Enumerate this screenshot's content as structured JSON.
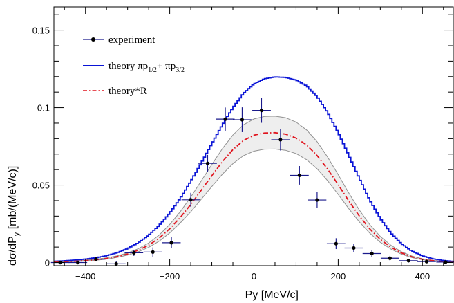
{
  "chart_data": {
    "type": "line",
    "xlabel": "Py [MeV/c]",
    "ylabel_main": "dσ/dP",
    "ylabel_sub": "y",
    "ylabel_tail": " [mb/(MeV/c)]",
    "xlim": [
      -475,
      475
    ],
    "ylim": [
      -0.002,
      0.165
    ],
    "x_ticks": [
      -400,
      -200,
      0,
      200,
      400
    ],
    "x_tick_labels": [
      "−400",
      "−200",
      "0",
      "200",
      "400"
    ],
    "y_ticks": [
      0,
      0.05,
      0.1,
      0.15
    ],
    "y_tick_labels": [
      "0",
      "0.05",
      "0.1",
      "0.15"
    ],
    "grid": false,
    "legend_position": "top-left",
    "legend": [
      {
        "key": "experiment",
        "text": "experiment"
      },
      {
        "key": "theory",
        "text": "theory ",
        "pi1": "πp",
        "sub1": "1/2",
        "plus": "+ ",
        "pi2": "πp",
        "sub2": "3/2"
      },
      {
        "key": "theoryR",
        "text": "theory*R"
      }
    ],
    "colors": {
      "theory": "#0a14d6",
      "theoryR": "#e0141e",
      "experiment": "#000000",
      "errorbar": "#1a1a8c",
      "band": "#909090"
    },
    "series": [
      {
        "key": "theory",
        "style": "step",
        "x": [
          -475,
          -450,
          -425,
          -400,
          -375,
          -350,
          -325,
          -300,
          -275,
          -250,
          -225,
          -200,
          -175,
          -150,
          -125,
          -100,
          -75,
          -50,
          -25,
          0,
          25,
          50,
          75,
          100,
          125,
          150,
          175,
          200,
          225,
          250,
          275,
          300,
          325,
          350,
          375,
          400,
          425,
          450,
          475
        ],
        "values": [
          0.0008,
          0.0011,
          0.0016,
          0.0022,
          0.0031,
          0.0044,
          0.0063,
          0.009,
          0.0127,
          0.0176,
          0.024,
          0.0319,
          0.0414,
          0.0523,
          0.0643,
          0.0767,
          0.0888,
          0.0999,
          0.1091,
          0.1153,
          0.1186,
          0.1198,
          0.1195,
          0.1178,
          0.1141,
          0.1072,
          0.0969,
          0.084,
          0.0694,
          0.0544,
          0.0404,
          0.0285,
          0.0191,
          0.0122,
          0.0074,
          0.0043,
          0.0024,
          0.0013,
          0.0007
        ]
      },
      {
        "key": "theoryR",
        "style": "dashdot",
        "x": [
          -475,
          -450,
          -425,
          -400,
          -375,
          -350,
          -325,
          -300,
          -275,
          -250,
          -225,
          -200,
          -175,
          -150,
          -125,
          -100,
          -75,
          -50,
          -25,
          0,
          25,
          50,
          75,
          100,
          125,
          150,
          175,
          200,
          225,
          250,
          275,
          300,
          325,
          350,
          375,
          400,
          425,
          450,
          475
        ],
        "values": [
          0.0003,
          0.0005,
          0.0008,
          0.0012,
          0.0018,
          0.0026,
          0.0038,
          0.0055,
          0.0079,
          0.0112,
          0.0158,
          0.0218,
          0.0291,
          0.0375,
          0.0467,
          0.0561,
          0.0651,
          0.0729,
          0.0788,
          0.0822,
          0.0836,
          0.0838,
          0.0829,
          0.0804,
          0.0759,
          0.0691,
          0.0603,
          0.0503,
          0.0399,
          0.0301,
          0.0217,
          0.015,
          0.0099,
          0.0062,
          0.0037,
          0.0021,
          0.0012,
          0.0006,
          0.0003
        ]
      }
    ],
    "band": {
      "x": [
        -475,
        -450,
        -425,
        -400,
        -375,
        -350,
        -325,
        -300,
        -275,
        -250,
        -225,
        -200,
        -175,
        -150,
        -125,
        -100,
        -75,
        -50,
        -25,
        0,
        25,
        50,
        75,
        100,
        125,
        150,
        175,
        200,
        225,
        250,
        275,
        300,
        325,
        350,
        375,
        400,
        425,
        450,
        475
      ],
      "upper": [
        0.0004,
        0.0006,
        0.0009,
        0.0014,
        0.0021,
        0.003,
        0.0043,
        0.0062,
        0.0089,
        0.0126,
        0.0178,
        0.0246,
        0.0328,
        0.0423,
        0.0527,
        0.0633,
        0.0735,
        0.0823,
        0.0889,
        0.0927,
        0.0943,
        0.0945,
        0.0935,
        0.0907,
        0.0856,
        0.078,
        0.068,
        0.0567,
        0.045,
        0.034,
        0.0245,
        0.0169,
        0.0112,
        0.007,
        0.0042,
        0.0024,
        0.0014,
        0.0007,
        0.0003
      ],
      "lower": [
        0.0002,
        0.0004,
        0.0007,
        0.001,
        0.0015,
        0.0022,
        0.0033,
        0.0048,
        0.0069,
        0.0098,
        0.0138,
        0.0191,
        0.0255,
        0.0328,
        0.0409,
        0.0491,
        0.057,
        0.0638,
        0.069,
        0.0719,
        0.0732,
        0.0733,
        0.0725,
        0.0704,
        0.0664,
        0.0605,
        0.0528,
        0.044,
        0.0349,
        0.0263,
        0.019,
        0.0131,
        0.0087,
        0.0054,
        0.0032,
        0.0018,
        0.0011,
        0.0005,
        0.0003
      ]
    },
    "experiment": {
      "x": [
        -460,
        -418,
        -375,
        -327,
        -285,
        -240,
        -196,
        -150,
        -110,
        -68,
        -28,
        18,
        63,
        108,
        150,
        195,
        237,
        280,
        323,
        367,
        410,
        455
      ],
      "y": [
        0.0,
        0.0,
        0.0022,
        -0.0008,
        0.0063,
        0.0068,
        0.0128,
        0.0405,
        0.064,
        0.0926,
        0.0922,
        0.0982,
        0.0793,
        0.0563,
        0.0404,
        0.0122,
        0.0094,
        0.0058,
        0.0028,
        0.0012,
        0.0006,
        0.0003
      ],
      "xerr": [
        22,
        22,
        22,
        22,
        22,
        22,
        22,
        22,
        22,
        22,
        22,
        22,
        22,
        22,
        22,
        22,
        22,
        22,
        22,
        22,
        22,
        22
      ],
      "yerr": [
        0.0012,
        0.0012,
        0.0015,
        0.0015,
        0.002,
        0.003,
        0.0035,
        0.0045,
        0.0055,
        0.0075,
        0.008,
        0.008,
        0.007,
        0.006,
        0.005,
        0.0035,
        0.0025,
        0.002,
        0.0015,
        0.0012,
        0.001,
        0.001
      ]
    }
  }
}
